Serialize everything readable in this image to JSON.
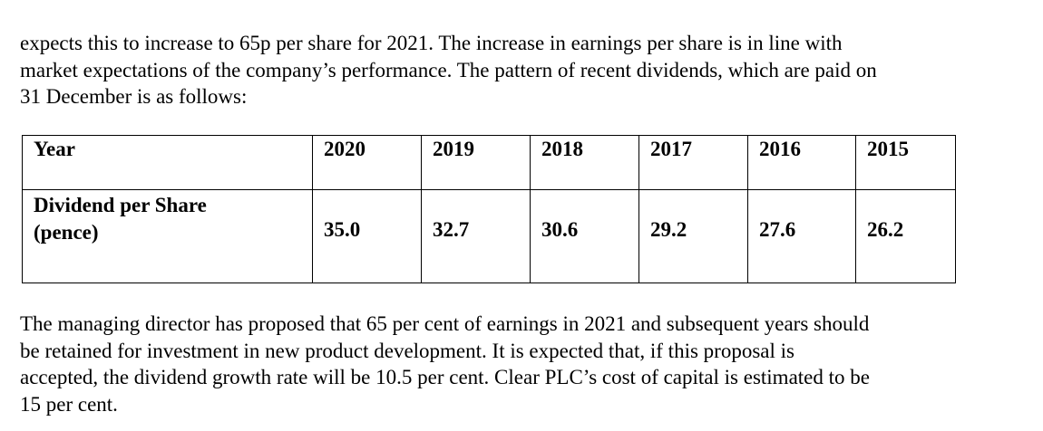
{
  "intro_lines": [
    "expects this to increase to 65p per share for 2021. The increase in earnings per share is in line with",
    "market expectations of the company’s performance. The pattern of recent dividends, which are paid on",
    "31 December is as follows:"
  ],
  "table": {
    "row_header": "Year",
    "years": [
      "2020",
      "2019",
      "2018",
      "2017",
      "2016",
      "2015"
    ],
    "dividend_label_lines": [
      "Dividend per Share",
      "(pence)"
    ],
    "dividends": [
      "35.0",
      "32.7",
      "30.6",
      "29.2",
      "27.6",
      "26.2"
    ]
  },
  "closing_lines": [
    "The managing director has proposed that 65 per cent of earnings in 2021 and subsequent years should",
    "be retained for investment in new product development. It is expected that, if this proposal is",
    "accepted, the dividend growth rate will be 10.5 per cent. Clear PLC’s cost of capital is estimated to be",
    "15 per cent."
  ]
}
